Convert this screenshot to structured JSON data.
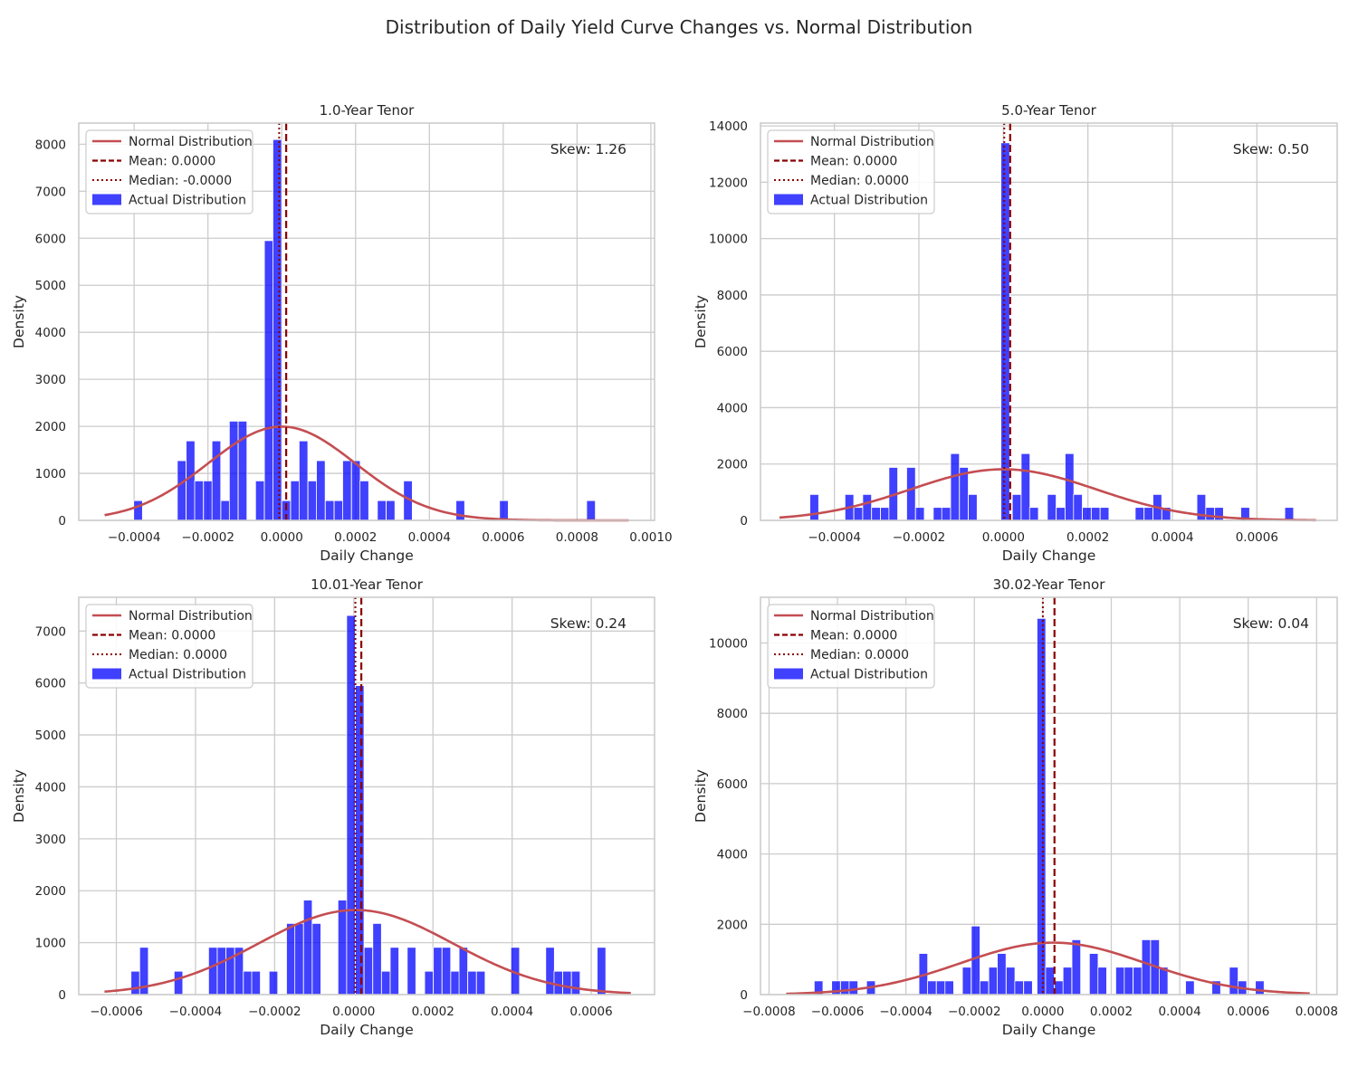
{
  "figure": {
    "title": "Distribution of Daily Yield Curve Changes vs. Normal Distribution"
  },
  "colors": {
    "bars": "#0000ff",
    "normal_curve": "#c44e52",
    "mean_line": "#8b0000",
    "median_line": "#8b0000",
    "grid": "#cccccc"
  },
  "chart_data": [
    {
      "type": "bar",
      "title": "1.0-Year Tenor",
      "xlabel": "Daily Change",
      "ylabel": "Density",
      "xlim": [
        -0.00055,
        0.00101
      ],
      "ylim": [
        0,
        8450
      ],
      "xticks": [
        -0.0004,
        -0.0002,
        0.0,
        0.0002,
        0.0004,
        0.0006,
        0.0008,
        0.001
      ],
      "xtick_labels": [
        "−0.0004",
        "−0.0002",
        "0.0000",
        "0.0002",
        "0.0004",
        "0.0006",
        "0.0008",
        "0.0010"
      ],
      "yticks": [
        0,
        1000,
        2000,
        3000,
        4000,
        5000,
        6000,
        7000,
        8000
      ],
      "ytick_labels": [
        "0",
        "1000",
        "2000",
        "3000",
        "4000",
        "5000",
        "6000",
        "7000",
        "8000"
      ],
      "bin_width": 2.36e-05,
      "bars": [
        [
          -0.000401,
          420
        ],
        [
          -0.000283,
          1270
        ],
        [
          -0.000259,
          1690
        ],
        [
          -0.000236,
          840
        ],
        [
          -0.000212,
          840
        ],
        [
          -0.000189,
          1690
        ],
        [
          -0.000165,
          420
        ],
        [
          -0.000142,
          2110
        ],
        [
          -0.000118,
          2110
        ],
        [
          -7.1e-05,
          840
        ],
        [
          -4.7e-05,
          5950
        ],
        [
          -2.4e-05,
          8100
        ],
        [
          0.0,
          420
        ],
        [
          2.4e-05,
          840
        ],
        [
          4.7e-05,
          1690
        ],
        [
          7.1e-05,
          840
        ],
        [
          9.4e-05,
          1270
        ],
        [
          0.000118,
          420
        ],
        [
          0.000142,
          420
        ],
        [
          0.000165,
          1270
        ],
        [
          0.000189,
          1270
        ],
        [
          0.000212,
          840
        ],
        [
          0.000259,
          420
        ],
        [
          0.000283,
          420
        ],
        [
          0.00033,
          840
        ],
        [
          0.000472,
          420
        ],
        [
          0.00059,
          420
        ],
        [
          0.000826,
          420
        ]
      ],
      "normal": {
        "mean": 0.0,
        "sd": 0.0002,
        "xmin": -0.00048,
        "xmax": 0.00094
      },
      "mean_x": 1.2e-05,
      "median_x": -7e-06,
      "legend": {
        "position": "upper left",
        "normal": "Normal Distribution",
        "mean": "Mean: 0.0000",
        "median": "Median: -0.0000",
        "actual": "Actual Distribution"
      },
      "skew_text": "Skew: 1.26"
    },
    {
      "type": "bar",
      "title": "5.0-Year Tenor",
      "xlabel": "Daily Change",
      "ylabel": "Density",
      "xlim": [
        -0.000575,
        0.00079
      ],
      "ylim": [
        0,
        14100
      ],
      "xticks": [
        -0.0004,
        -0.0002,
        0.0,
        0.0002,
        0.0004,
        0.0006
      ],
      "xtick_labels": [
        "−0.0004",
        "−0.0002",
        "0.0000",
        "0.0002",
        "0.0004",
        "0.0006"
      ],
      "yticks": [
        0,
        2000,
        4000,
        6000,
        8000,
        10000,
        12000,
        14000
      ],
      "ytick_labels": [
        "0",
        "2000",
        "4000",
        "6000",
        "8000",
        "10000",
        "12000",
        "14000"
      ],
      "bin_width": 2.08e-05,
      "bars": [
        [
          -0.000458,
          920
        ],
        [
          -0.000375,
          920
        ],
        [
          -0.000354,
          460
        ],
        [
          -0.000333,
          920
        ],
        [
          -0.000312,
          460
        ],
        [
          -0.000291,
          460
        ],
        [
          -0.000271,
          1880
        ],
        [
          -0.000229,
          1880
        ],
        [
          -0.000208,
          460
        ],
        [
          -0.000166,
          460
        ],
        [
          -0.000146,
          460
        ],
        [
          -0.000125,
          2370
        ],
        [
          -0.000104,
          1880
        ],
        [
          -8.3e-05,
          920
        ],
        [
          -6e-06,
          13400
        ],
        [
          2.1e-05,
          920
        ],
        [
          4.2e-05,
          2370
        ],
        [
          6.2e-05,
          460
        ],
        [
          0.000104,
          920
        ],
        [
          0.000125,
          460
        ],
        [
          0.000146,
          2370
        ],
        [
          0.000166,
          920
        ],
        [
          0.000187,
          460
        ],
        [
          0.000208,
          460
        ],
        [
          0.000229,
          460
        ],
        [
          0.000312,
          460
        ],
        [
          0.000333,
          460
        ],
        [
          0.000354,
          920
        ],
        [
          0.000375,
          460
        ],
        [
          0.000458,
          920
        ],
        [
          0.000479,
          460
        ],
        [
          0.0005,
          460
        ],
        [
          0.000562,
          460
        ],
        [
          0.000666,
          460
        ]
      ],
      "normal": {
        "mean": 0.0,
        "sd": 0.00022,
        "xmin": -0.00053,
        "xmax": 0.00074
      },
      "mean_x": 1.6e-05,
      "median_x": 2e-06,
      "legend": {
        "position": "upper left",
        "normal": "Normal Distribution",
        "mean": "Mean: 0.0000",
        "median": "Median: 0.0000",
        "actual": "Actual Distribution"
      },
      "skew_text": "Skew: 0.50"
    },
    {
      "type": "bar",
      "title": "10.01-Year Tenor",
      "xlabel": "Daily Change",
      "ylabel": "Density",
      "xlim": [
        -0.000695,
        0.00076
      ],
      "ylim": [
        0,
        7650
      ],
      "xticks": [
        -0.0006,
        -0.0004,
        -0.0002,
        0.0,
        0.0002,
        0.0004,
        0.0006
      ],
      "xtick_labels": [
        "−0.0006",
        "−0.0004",
        "−0.0002",
        "0.0000",
        "0.0002",
        "0.0004",
        "0.0006"
      ],
      "yticks": [
        0,
        1000,
        2000,
        3000,
        4000,
        5000,
        6000,
        7000
      ],
      "ytick_labels": [
        "0",
        "1000",
        "2000",
        "3000",
        "4000",
        "5000",
        "6000",
        "7000"
      ],
      "bin_width": 2.18e-05,
      "bars": [
        [
          -0.000563,
          450
        ],
        [
          -0.000541,
          910
        ],
        [
          -0.000454,
          450
        ],
        [
          -0.000367,
          910
        ],
        [
          -0.000345,
          910
        ],
        [
          -0.000323,
          910
        ],
        [
          -0.000301,
          910
        ],
        [
          -0.000279,
          450
        ],
        [
          -0.000258,
          450
        ],
        [
          -0.000214,
          450
        ],
        [
          -0.00017,
          1370
        ],
        [
          -0.000149,
          1370
        ],
        [
          -0.000127,
          1820
        ],
        [
          -0.000105,
          1370
        ],
        [
          -4e-05,
          1820
        ],
        [
          -1.8e-05,
          7300
        ],
        [
          4e-06,
          5950
        ],
        [
          2.6e-05,
          910
        ],
        [
          4.8e-05,
          1370
        ],
        [
          7e-05,
          450
        ],
        [
          9.2e-05,
          910
        ],
        [
          0.000135,
          910
        ],
        [
          0.000179,
          450
        ],
        [
          0.000201,
          910
        ],
        [
          0.000223,
          910
        ],
        [
          0.000245,
          450
        ],
        [
          0.000266,
          910
        ],
        [
          0.000288,
          450
        ],
        [
          0.00031,
          450
        ],
        [
          0.000397,
          910
        ],
        [
          0.000485,
          910
        ],
        [
          0.000506,
          450
        ],
        [
          0.000528,
          450
        ],
        [
          0.00055,
          450
        ],
        [
          0.000615,
          910
        ]
      ],
      "normal": {
        "mean": 5e-06,
        "sd": 0.000245,
        "xmin": -0.00063,
        "xmax": 0.0007
      },
      "mean_x": 1.9e-05,
      "median_x": 4e-06,
      "legend": {
        "position": "upper left",
        "normal": "Normal Distribution",
        "mean": "Mean: 0.0000",
        "median": "Median: 0.0000",
        "actual": "Actual Distribution"
      },
      "skew_text": "Skew: 0.24"
    },
    {
      "type": "bar",
      "title": "30.02-Year Tenor",
      "xlabel": "Daily Change",
      "ylabel": "Density",
      "xlim": [
        -0.000825,
        0.00086
      ],
      "ylim": [
        0,
        11300
      ],
      "xticks": [
        -0.0008,
        -0.0006,
        -0.0004,
        -0.0002,
        0.0,
        0.0002,
        0.0004,
        0.0006,
        0.0008
      ],
      "xtick_labels": [
        "−0.0008",
        "−0.0006",
        "−0.0004",
        "−0.0002",
        "0.0000",
        "0.0002",
        "0.0004",
        "0.0006",
        "0.0008"
      ],
      "yticks": [
        0,
        2000,
        4000,
        6000,
        8000,
        10000
      ],
      "ytick_labels": [
        "0",
        "2000",
        "4000",
        "6000",
        "8000",
        "10000"
      ],
      "bin_width": 2.55e-05,
      "bars": [
        [
          -0.000668,
          390
        ],
        [
          -0.000617,
          390
        ],
        [
          -0.000591,
          390
        ],
        [
          -0.000566,
          390
        ],
        [
          -0.000515,
          390
        ],
        [
          -0.000362,
          1170
        ],
        [
          -0.000337,
          390
        ],
        [
          -0.000311,
          390
        ],
        [
          -0.000286,
          390
        ],
        [
          -0.000235,
          780
        ],
        [
          -0.000209,
          1950
        ],
        [
          -0.000184,
          390
        ],
        [
          -0.000158,
          780
        ],
        [
          -0.000133,
          1170
        ],
        [
          -0.000107,
          780
        ],
        [
          -8.2e-05,
          390
        ],
        [
          -5.6e-05,
          390
        ],
        [
          -1.7e-05,
          10700
        ],
        [
          8e-06,
          780
        ],
        [
          3.4e-05,
          390
        ],
        [
          5.9e-05,
          780
        ],
        [
          8.5e-05,
          1560
        ],
        [
          0.000136,
          1170
        ],
        [
          0.000161,
          780
        ],
        [
          0.000213,
          780
        ],
        [
          0.000238,
          780
        ],
        [
          0.000264,
          780
        ],
        [
          0.000289,
          1560
        ],
        [
          0.000315,
          1560
        ],
        [
          0.00034,
          780
        ],
        [
          0.000417,
          390
        ],
        [
          0.000494,
          390
        ],
        [
          0.000545,
          780
        ],
        [
          0.00057,
          390
        ],
        [
          0.000621,
          390
        ]
      ],
      "normal": {
        "mean": 3e-05,
        "sd": 0.00027,
        "xmin": -0.00075,
        "xmax": 0.00078
      },
      "mean_x": 3.4e-05,
      "median_x": 0.0,
      "legend": {
        "position": "upper left",
        "normal": "Normal Distribution",
        "mean": "Mean: 0.0000",
        "median": "Median: 0.0000",
        "actual": "Actual Distribution"
      },
      "skew_text": "Skew: 0.04"
    }
  ]
}
